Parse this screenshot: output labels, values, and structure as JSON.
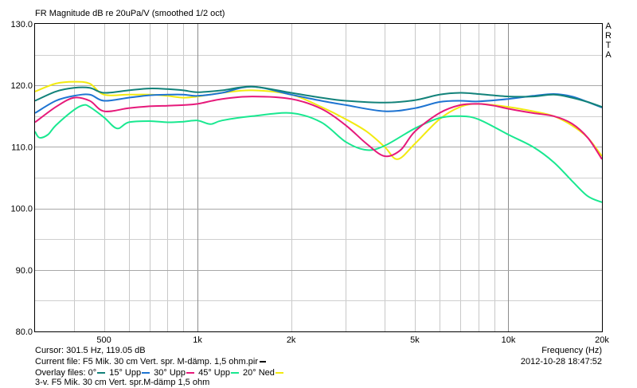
{
  "chart_data": {
    "type": "line",
    "title": "FR Magnitude dB re 20uPa/V (smoothed 1/2 oct)",
    "xlabel": "Frequency (Hz)",
    "xscale": "log",
    "xlim": [
      300,
      20000
    ],
    "ylim": [
      80,
      130
    ],
    "grid": true,
    "y_ticks": [
      "80.0",
      "90.0",
      "100.0",
      "110.0",
      "120.0",
      "130.0"
    ],
    "y_tick_values": [
      80,
      90,
      100,
      110,
      120,
      130
    ],
    "x_ticks": [
      "500",
      "1k",
      "2k",
      "5k",
      "10k",
      "20k"
    ],
    "x_tick_values": [
      500,
      1000,
      2000,
      5000,
      10000,
      20000
    ],
    "series": [
      {
        "name": "0°",
        "color": "#12827a",
        "points": [
          [
            300,
            117.5
          ],
          [
            350,
            119
          ],
          [
            400,
            119.6
          ],
          [
            450,
            119.6
          ],
          [
            500,
            118.8
          ],
          [
            600,
            119.2
          ],
          [
            700,
            119.5
          ],
          [
            800,
            119.4
          ],
          [
            900,
            119.2
          ],
          [
            1000,
            118.9
          ],
          [
            1200,
            119.2
          ],
          [
            1500,
            119.8
          ],
          [
            2000,
            118.8
          ],
          [
            2500,
            118
          ],
          [
            3000,
            117.5
          ],
          [
            4000,
            117.2
          ],
          [
            5000,
            117.6
          ],
          [
            6000,
            118.5
          ],
          [
            7000,
            118.8
          ],
          [
            8000,
            118.6
          ],
          [
            10000,
            118.2
          ],
          [
            12000,
            118.2
          ],
          [
            14000,
            118.5
          ],
          [
            16000,
            118
          ],
          [
            18000,
            117.3
          ],
          [
            20000,
            116.5
          ]
        ]
      },
      {
        "name": "15° Upp",
        "color": "#1e74d2",
        "points": [
          [
            300,
            115.5
          ],
          [
            350,
            117.5
          ],
          [
            400,
            118.3
          ],
          [
            450,
            118.5
          ],
          [
            500,
            117.5
          ],
          [
            600,
            118
          ],
          [
            700,
            118.4
          ],
          [
            800,
            118.5
          ],
          [
            900,
            118.5
          ],
          [
            1000,
            118.3
          ],
          [
            1200,
            118.8
          ],
          [
            1500,
            119.8
          ],
          [
            2000,
            118.5
          ],
          [
            2500,
            117.5
          ],
          [
            3000,
            116.8
          ],
          [
            4000,
            115.8
          ],
          [
            5000,
            116.3
          ],
          [
            6000,
            117.3
          ],
          [
            7000,
            117.5
          ],
          [
            8000,
            117.4
          ],
          [
            10000,
            117.8
          ],
          [
            12000,
            118.3
          ],
          [
            14000,
            118.6
          ],
          [
            16000,
            118.2
          ],
          [
            18000,
            117.3
          ],
          [
            20000,
            116.4
          ]
        ]
      },
      {
        "name": "30° Upp",
        "color": "#e6197a",
        "points": [
          [
            300,
            114
          ],
          [
            350,
            116.5
          ],
          [
            400,
            118
          ],
          [
            450,
            117.5
          ],
          [
            500,
            115.8
          ],
          [
            600,
            116.3
          ],
          [
            700,
            116.6
          ],
          [
            800,
            116.7
          ],
          [
            900,
            116.8
          ],
          [
            1000,
            117
          ],
          [
            1200,
            117.8
          ],
          [
            1500,
            118.2
          ],
          [
            2000,
            117.8
          ],
          [
            2500,
            116.2
          ],
          [
            3000,
            113.5
          ],
          [
            3500,
            110.5
          ],
          [
            4000,
            108.5
          ],
          [
            4500,
            109.5
          ],
          [
            5000,
            112.5
          ],
          [
            6000,
            115.5
          ],
          [
            7000,
            116.8
          ],
          [
            8000,
            117
          ],
          [
            9000,
            116.7
          ],
          [
            10000,
            116.2
          ],
          [
            12000,
            115.5
          ],
          [
            14000,
            115
          ],
          [
            16000,
            113.8
          ],
          [
            18000,
            111.5
          ],
          [
            20000,
            108
          ]
        ]
      },
      {
        "name": "45° Upp",
        "color": "#19e890",
        "points": [
          [
            300,
            112.5
          ],
          [
            310,
            111.5
          ],
          [
            330,
            112
          ],
          [
            350,
            113.5
          ],
          [
            400,
            116
          ],
          [
            430,
            116.8
          ],
          [
            450,
            116.5
          ],
          [
            500,
            114.8
          ],
          [
            550,
            113
          ],
          [
            600,
            114
          ],
          [
            700,
            114.2
          ],
          [
            800,
            114
          ],
          [
            900,
            114.1
          ],
          [
            1000,
            114.3
          ],
          [
            1100,
            113.7
          ],
          [
            1200,
            114.3
          ],
          [
            1500,
            115
          ],
          [
            2000,
            115.5
          ],
          [
            2500,
            114
          ],
          [
            3000,
            110.8
          ],
          [
            3500,
            109.5
          ],
          [
            4000,
            110.2
          ],
          [
            5000,
            113
          ],
          [
            6000,
            114.7
          ],
          [
            7000,
            115
          ],
          [
            8000,
            114.5
          ],
          [
            10000,
            112
          ],
          [
            12000,
            110
          ],
          [
            14000,
            107.5
          ],
          [
            16000,
            104.5
          ],
          [
            18000,
            102
          ],
          [
            20000,
            101
          ]
        ]
      },
      {
        "name": "20° Ned",
        "color": "#f2ea10",
        "points": [
          [
            300,
            119
          ],
          [
            350,
            120.3
          ],
          [
            400,
            120.6
          ],
          [
            450,
            120.3
          ],
          [
            500,
            118.5
          ],
          [
            600,
            118.5
          ],
          [
            700,
            118.5
          ],
          [
            800,
            118.3
          ],
          [
            900,
            118
          ],
          [
            1000,
            118.2
          ],
          [
            1200,
            118.8
          ],
          [
            1500,
            119.2
          ],
          [
            2000,
            118.5
          ],
          [
            2500,
            116.5
          ],
          [
            3000,
            114.5
          ],
          [
            3500,
            112.5
          ],
          [
            4000,
            110
          ],
          [
            4400,
            108
          ],
          [
            5000,
            110.5
          ],
          [
            6000,
            114.5
          ],
          [
            7000,
            116.5
          ],
          [
            8000,
            117
          ],
          [
            10000,
            116.5
          ],
          [
            12000,
            115.8
          ],
          [
            14000,
            115
          ],
          [
            16000,
            113.5
          ],
          [
            18000,
            111.5
          ],
          [
            20000,
            108.5
          ]
        ]
      }
    ]
  },
  "info": {
    "cursor": "Cursor: 301.5 Hz, 119.05 dB",
    "frequency_label": "Frequency (Hz)",
    "current_file": "Current file: F5 Mik. 30 cm Vert. spr. M-dämp. 1,5 ohm.pir",
    "datetime": "2012-10-28  18:47:52",
    "overlay_label": "Overlay files:",
    "overlay": [
      {
        "name": "0°",
        "color": "#12827a"
      },
      {
        "name": "15° Upp",
        "color": "#1e74d2"
      },
      {
        "name": "30° Upp",
        "color": "#e6197a"
      },
      {
        "name": "45° Upp",
        "color": "#19e890"
      },
      {
        "name": "20° Ned",
        "color": "#f2ea10"
      }
    ],
    "note": "3-v. F5 Mik. 30 cm Vert. spr.M-dämp 1,5 ohm"
  },
  "watermark": [
    "A",
    "R",
    "T",
    "A"
  ]
}
